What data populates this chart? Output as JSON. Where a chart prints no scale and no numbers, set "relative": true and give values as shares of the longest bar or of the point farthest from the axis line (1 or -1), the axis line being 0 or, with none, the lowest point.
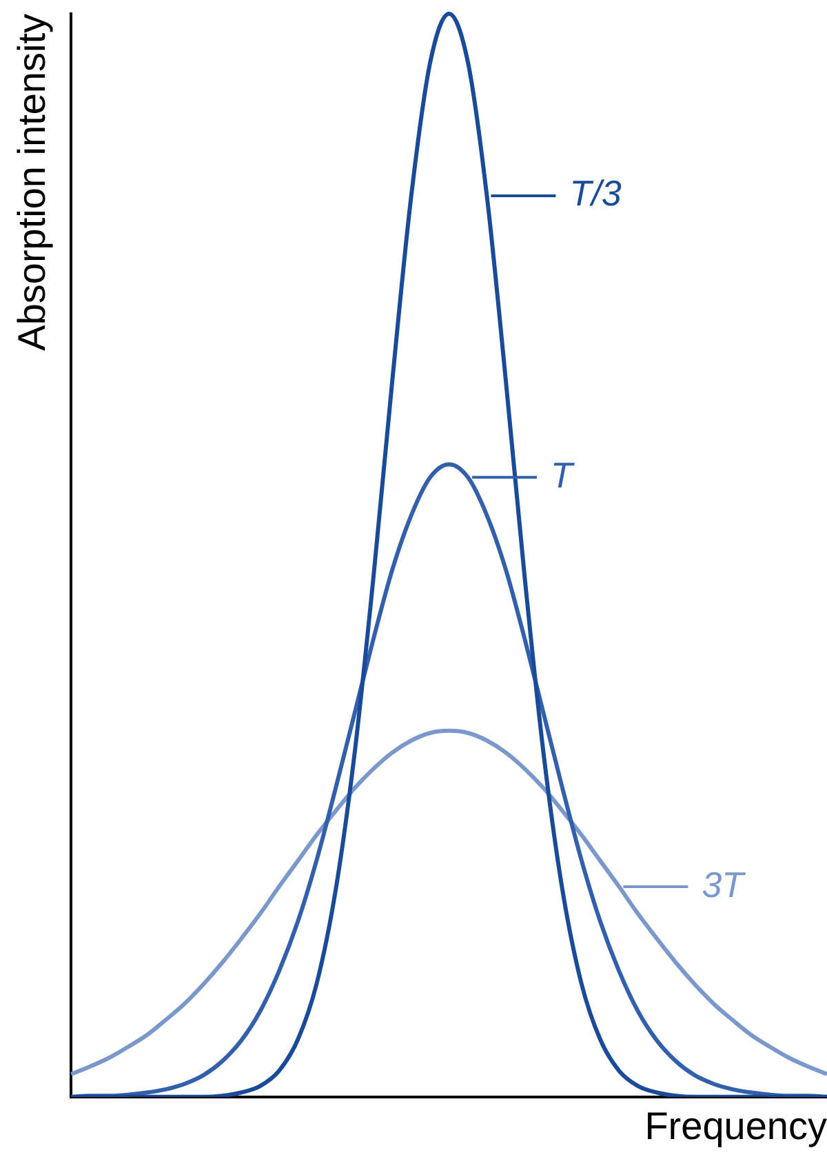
{
  "chart_data": {
    "type": "line",
    "relative": true,
    "xlabel": "Frequency",
    "ylabel": "Absorption intensity",
    "categories": [
      null,
      null,
      null,
      null,
      null,
      null,
      null,
      null,
      null,
      null,
      null,
      null,
      null,
      null,
      null,
      null,
      null,
      null,
      null,
      null,
      null,
      null,
      null,
      null,
      null,
      null,
      null,
      null,
      null,
      null,
      null,
      null,
      null,
      null,
      null,
      null,
      null,
      null,
      null,
      null,
      null
    ],
    "marker": "none",
    "grid": false,
    "legend": "right",
    "series": [
      {
        "name": "T/3",
        "color": "#1a4b9b",
        "values": [
          0,
          0,
          0,
          0,
          0,
          0,
          0,
          0,
          0.001,
          0.004,
          0.01,
          0.024,
          0.053,
          0.105,
          0.191,
          0.317,
          0.48,
          0.662,
          0.832,
          0.955,
          1,
          0.955,
          0.832,
          0.662,
          0.48,
          0.317,
          0.191,
          0.105,
          0.053,
          0.024,
          0.01,
          0.004,
          0.001,
          0,
          0,
          0,
          0,
          0,
          0,
          0,
          0
        ]
      },
      {
        "name": "T",
        "color": "#3260ad",
        "values": [
          0,
          0.001,
          0.001,
          0.002,
          0.004,
          0.007,
          0.012,
          0.02,
          0.033,
          0.052,
          0.079,
          0.116,
          0.162,
          0.219,
          0.285,
          0.354,
          0.423,
          0.487,
          0.537,
          0.572,
          0.584,
          0.572,
          0.537,
          0.487,
          0.423,
          0.354,
          0.285,
          0.219,
          0.162,
          0.116,
          0.079,
          0.052,
          0.033,
          0.02,
          0.012,
          0.007,
          0.004,
          0.002,
          0.001,
          0.001,
          0
        ]
      },
      {
        "name": "3T",
        "color": "#7b98cc",
        "values": [
          0.021,
          0.028,
          0.036,
          0.046,
          0.057,
          0.071,
          0.086,
          0.104,
          0.124,
          0.146,
          0.169,
          0.194,
          0.218,
          0.242,
          0.264,
          0.285,
          0.303,
          0.318,
          0.329,
          0.336,
          0.338,
          0.336,
          0.329,
          0.318,
          0.303,
          0.285,
          0.264,
          0.242,
          0.218,
          0.194,
          0.169,
          0.146,
          0.124,
          0.104,
          0.086,
          0.071,
          0.057,
          0.046,
          0.036,
          0.028,
          0.021
        ]
      }
    ]
  }
}
